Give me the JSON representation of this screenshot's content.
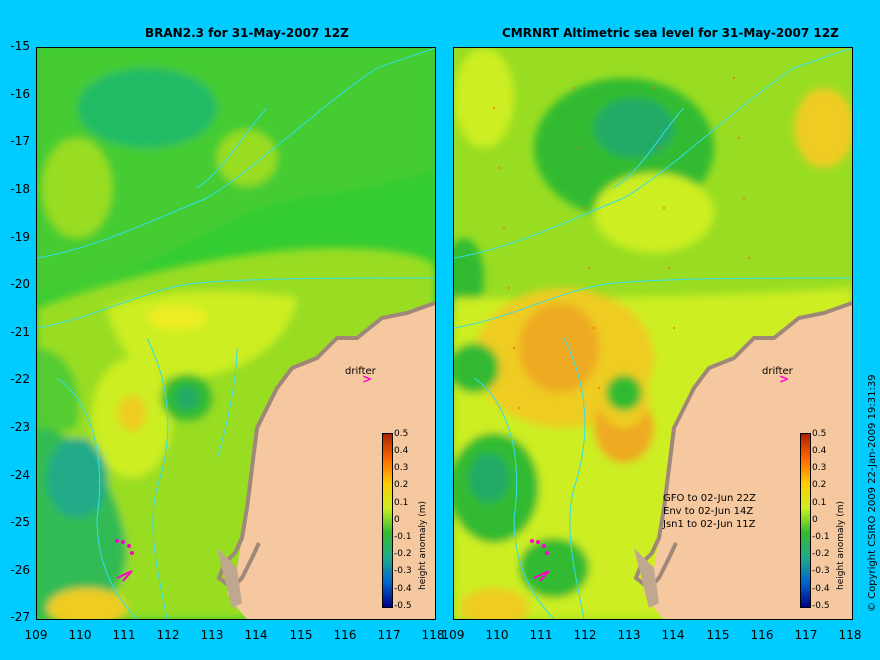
{
  "left_panel": {
    "title": "BRAN2.3 for 31-May-2007 12Z",
    "drifter_label": "drifter",
    "colorbar_title": "height anomaly (m)"
  },
  "right_panel": {
    "title": "CMRNRT Altimetric sea level  for 31-May-2007 12Z",
    "drifter_label": "drifter",
    "colorbar_title": "height anomaly (m)",
    "legend": [
      "GFO to 02-Jun 22Z",
      "Env to 02-Jun 14Z",
      "Jsn1 to 02-Jun 11Z"
    ]
  },
  "y_ticks": [
    "-15",
    "-16",
    "-17",
    "-18",
    "-19",
    "-20",
    "-21",
    "-22",
    "-23",
    "-24",
    "-25",
    "-26",
    "-27"
  ],
  "x_ticks": [
    "109",
    "110",
    "111",
    "112",
    "113",
    "114",
    "115",
    "116",
    "117",
    "118"
  ],
  "colorbar_ticks": [
    "0.5",
    "0.4",
    "0.3",
    "0.2",
    "0.1",
    "0",
    "-0.1",
    "-0.2",
    "-0.3",
    "-0.4",
    "-0.5"
  ],
  "copyright": "© Copyright CSIRO 2009   22-Jan-2009 19:31:39",
  "colors": {
    "background": "#00ccff",
    "land": "#f5c8a0",
    "coast": "#c0a890",
    "drifter_arrow": "#ff00cc"
  }
}
